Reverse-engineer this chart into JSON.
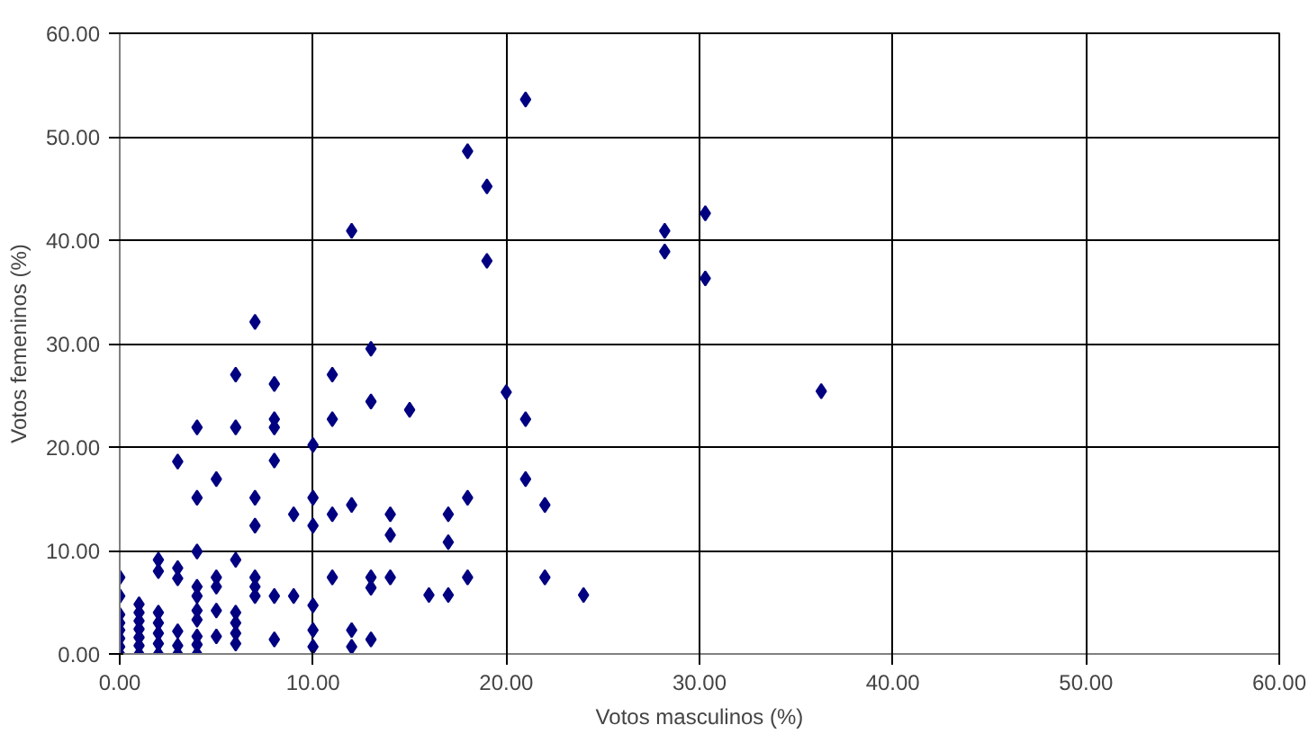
{
  "chart_data": {
    "type": "scatter",
    "xlabel": "Votos masculinos (%)",
    "ylabel": "Votos femeninos (%)",
    "marker": "diamond",
    "grid": true,
    "xlim": [
      0,
      60
    ],
    "ylim": [
      0,
      60
    ],
    "xticks": [
      {
        "value": 0,
        "label": "0.00"
      },
      {
        "value": 10,
        "label": "10.00"
      },
      {
        "value": 20,
        "label": "20.00"
      },
      {
        "value": 30,
        "label": "30.00"
      },
      {
        "value": 40,
        "label": "40.00"
      },
      {
        "value": 50,
        "label": "50.00"
      },
      {
        "value": 60,
        "label": "60.00"
      }
    ],
    "yticks": [
      {
        "value": 0,
        "label": "0.00"
      },
      {
        "value": 10,
        "label": "10.00"
      },
      {
        "value": 20,
        "label": "20.00"
      },
      {
        "value": 30,
        "label": "30.00"
      },
      {
        "value": 40,
        "label": "40.00"
      },
      {
        "value": 50,
        "label": "50.00"
      },
      {
        "value": 60,
        "label": "60.00"
      }
    ],
    "series": [
      {
        "color": "#000080",
        "x": [
          0,
          0,
          0,
          0,
          0,
          0,
          0,
          0,
          1,
          1,
          1,
          1,
          1,
          1,
          1,
          2,
          2,
          2,
          2,
          2,
          2,
          2,
          3,
          3,
          3,
          3,
          3,
          3,
          4,
          4,
          4,
          4,
          4,
          4,
          4,
          4,
          4,
          4,
          5,
          5,
          5,
          5,
          5,
          6,
          6,
          6,
          6,
          6,
          6,
          6,
          7,
          7,
          7,
          7,
          7,
          7,
          8,
          8,
          8,
          8,
          8,
          8,
          9,
          9,
          10,
          10,
          10,
          10,
          10,
          10,
          11,
          11,
          11,
          11,
          12,
          12,
          12,
          12,
          13,
          13,
          13,
          13,
          13,
          14,
          14,
          14,
          15,
          16,
          17,
          17,
          17,
          18,
          18,
          18,
          19,
          19,
          20,
          21,
          21,
          21,
          22,
          22,
          24,
          28.2,
          28.2,
          30.3,
          30.3,
          36.3
        ],
        "values": [
          0,
          0.7,
          1.5,
          2.3,
          3.0,
          3.8,
          5.6,
          7.4,
          0,
          0.8,
          1.6,
          2.4,
          3.2,
          4.0,
          4.8,
          0,
          1,
          2,
          3,
          4,
          8.0,
          9.1,
          0,
          0.8,
          2.2,
          7.3,
          8.3,
          18.6,
          0,
          0.9,
          1.7,
          3.3,
          4.2,
          5.6,
          6.5,
          9.9,
          15.1,
          21.9,
          1.7,
          4.2,
          6.5,
          7.4,
          16.9,
          1,
          2,
          3,
          4,
          9.1,
          21.9,
          27.0,
          5.6,
          6.5,
          7.4,
          12.4,
          15.1,
          32.1,
          1.4,
          5.6,
          18.7,
          21.9,
          22.7,
          26.1,
          5.6,
          13.5,
          0.7,
          2.3,
          4.7,
          12.4,
          15.1,
          20.2,
          7.4,
          13.5,
          22.7,
          27.0,
          0.7,
          2.3,
          14.4,
          40.9,
          1.4,
          6.4,
          7.4,
          24.4,
          29.5,
          7.4,
          11.5,
          13.5,
          23.6,
          5.7,
          5.7,
          10.8,
          13.5,
          7.4,
          15.1,
          48.6,
          45.2,
          38.0,
          25.3,
          16.9,
          22.7,
          53.6,
          14.4,
          7.4,
          5.7,
          40.9,
          38.9,
          42.6,
          36.3,
          25.4
        ]
      }
    ]
  }
}
